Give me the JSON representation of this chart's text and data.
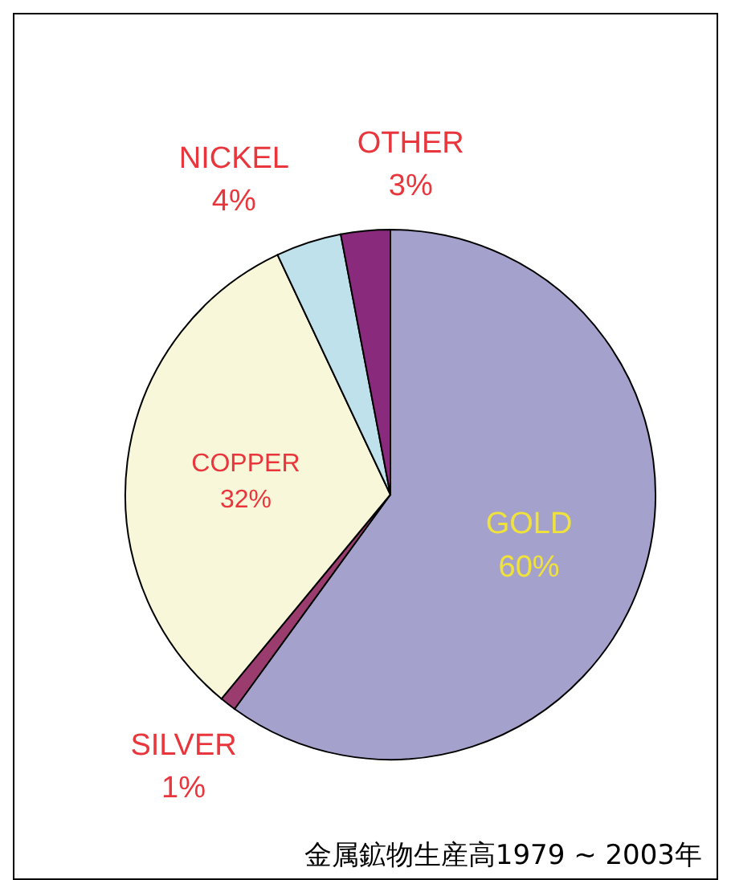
{
  "chart_data": {
    "type": "pie",
    "title": "金属鉱物生産高1979 ~ 2003年",
    "categories": [
      "GOLD",
      "SILVER",
      "COPPER",
      "NICKEL",
      "OTHER"
    ],
    "values": [
      60,
      1,
      32,
      4,
      3
    ],
    "colors": [
      "#a4a1cc",
      "#9b3c6f",
      "#f8f7d9",
      "#bee1ec",
      "#8a2a7c"
    ],
    "value_labels": [
      "60%",
      "1%",
      "32%",
      "4%",
      "3%"
    ]
  }
}
